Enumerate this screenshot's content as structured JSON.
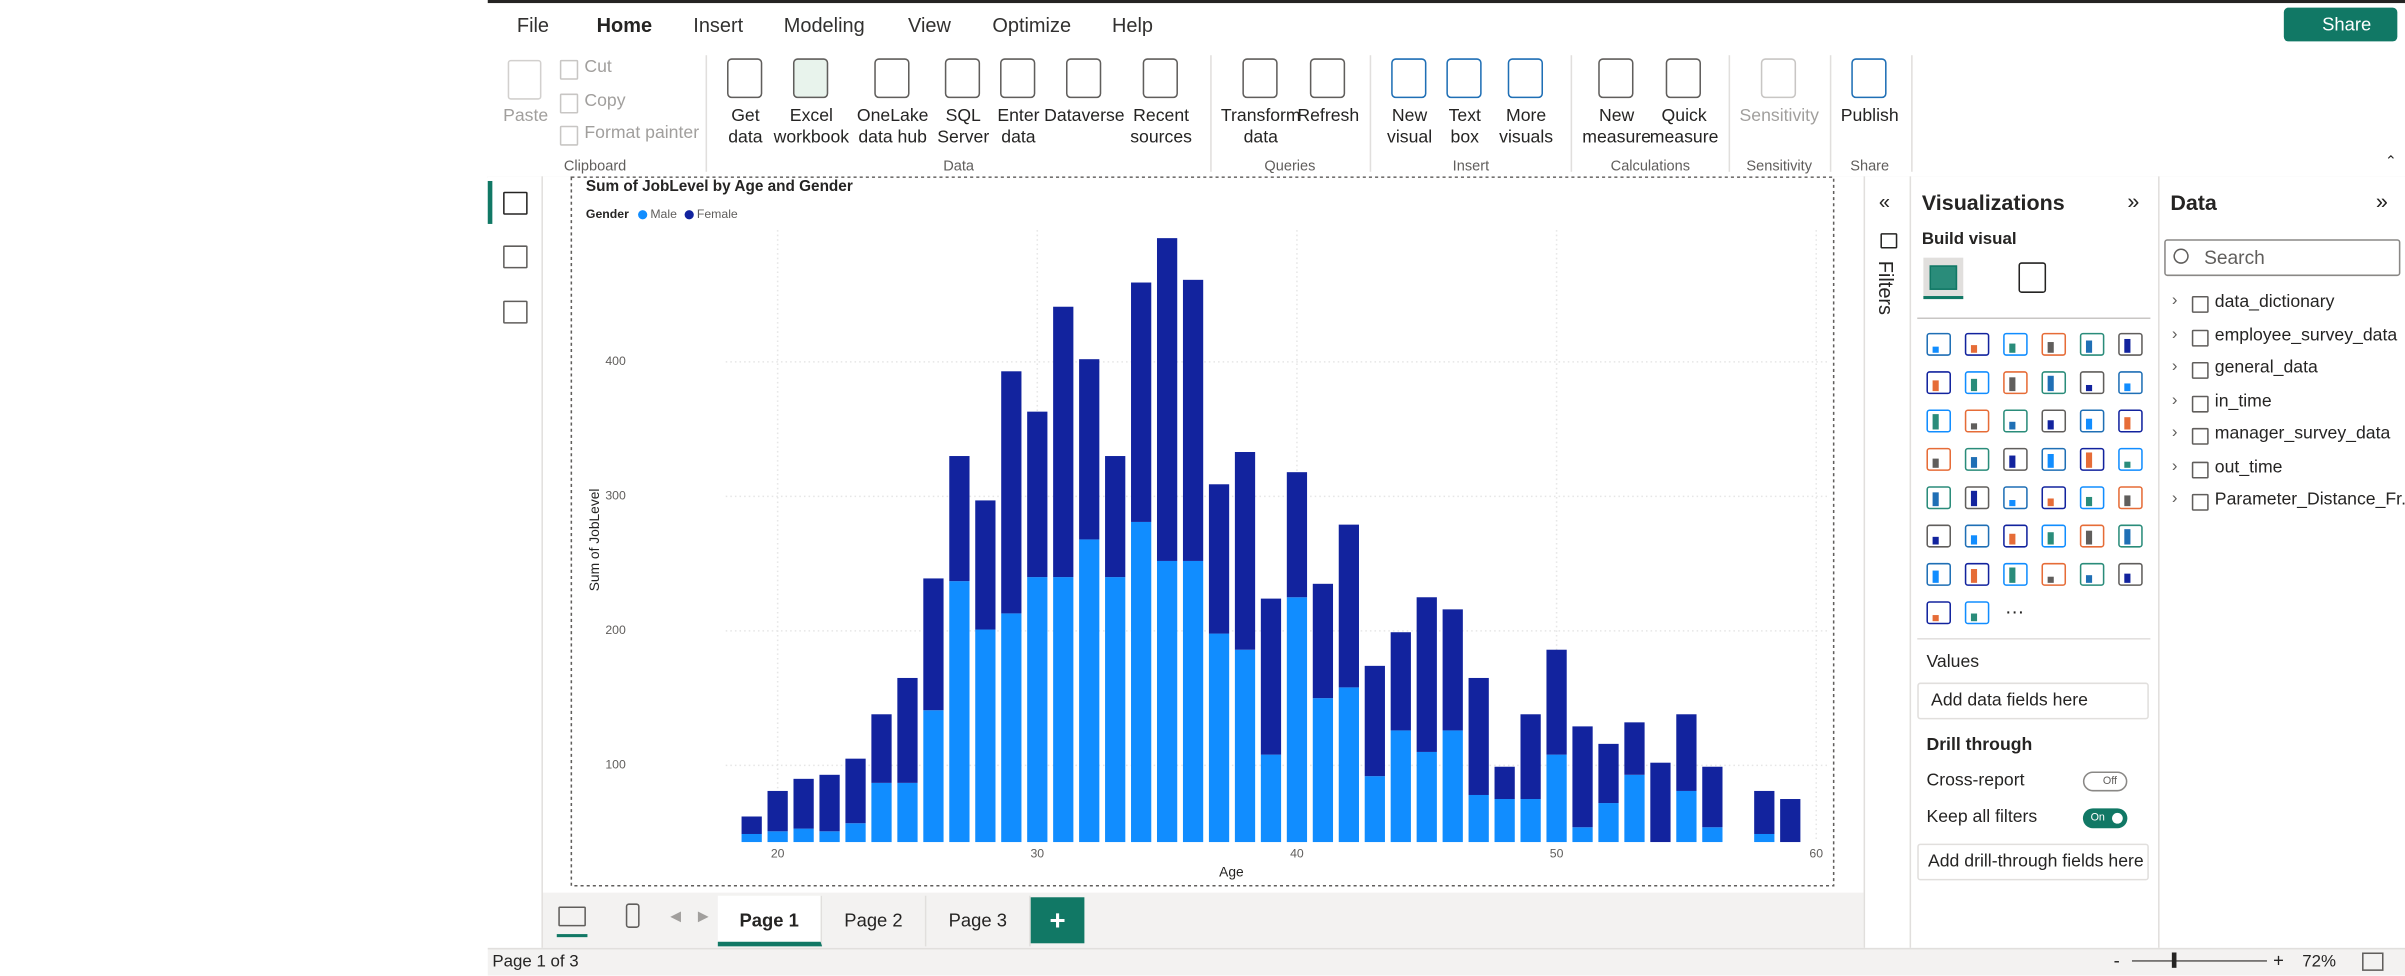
{
  "menu": {
    "items": [
      "File",
      "Home",
      "Insert",
      "Modeling",
      "View",
      "Optimize",
      "Help"
    ],
    "share": "Share"
  },
  "ribbon": {
    "groups": [
      {
        "label": "Clipboard",
        "items": [
          {
            "label": [
              "Paste"
            ]
          },
          {
            "label": [
              "Cut"
            ]
          },
          {
            "label": [
              "Copy"
            ]
          },
          {
            "label": [
              "Format painter"
            ]
          }
        ]
      },
      {
        "label": "Data",
        "items": [
          {
            "label": [
              "Get",
              "data"
            ]
          },
          {
            "label": [
              "Excel",
              "workbook"
            ]
          },
          {
            "label": [
              "OneLake",
              "data hub"
            ]
          },
          {
            "label": [
              "SQL",
              "Server"
            ]
          },
          {
            "label": [
              "Enter",
              "data"
            ]
          },
          {
            "label": [
              "Dataverse"
            ]
          },
          {
            "label": [
              "Recent",
              "sources"
            ]
          }
        ]
      },
      {
        "label": "Queries",
        "items": [
          {
            "label": [
              "Transform",
              "data"
            ]
          },
          {
            "label": [
              "Refresh"
            ]
          }
        ]
      },
      {
        "label": "Insert",
        "items": [
          {
            "label": [
              "New",
              "visual"
            ]
          },
          {
            "label": [
              "Text",
              "box"
            ]
          },
          {
            "label": [
              "More",
              "visuals"
            ]
          }
        ]
      },
      {
        "label": "Calculations",
        "items": [
          {
            "label": [
              "New",
              "measure"
            ]
          },
          {
            "label": [
              "Quick",
              "measure"
            ]
          }
        ]
      },
      {
        "label": "Sensitivity",
        "items": [
          {
            "label": [
              "Sensitivity"
            ]
          }
        ]
      },
      {
        "label": "Share",
        "items": [
          {
            "label": [
              "Publish"
            ]
          }
        ]
      }
    ]
  },
  "filters": {
    "title": "Filters"
  },
  "visualizations": {
    "title": "Visualizations",
    "build_visual": "Build visual",
    "values_label": "Values",
    "values_placeholder": "Add data fields here",
    "drill_through": "Drill through",
    "cross_report": "Cross-report",
    "cross_report_state": "Off",
    "keep_all_filters": "Keep all filters",
    "keep_all_filters_state": "On",
    "drill_placeholder": "Add drill-through fields here"
  },
  "data_pane": {
    "title": "Data",
    "search": "Search",
    "tables": [
      "data_dictionary",
      "employee_survey_data",
      "general_data",
      "in_time",
      "manager_survey_data",
      "out_time",
      "Parameter_Distance_Fr..."
    ]
  },
  "pages": {
    "tabs": [
      "Page 1",
      "Page 2",
      "Page 3"
    ],
    "status": "Page 1 of 3",
    "zoom": "72%"
  },
  "chart_data": {
    "type": "stacked_bar",
    "title": "Sum of JobLevel by Age and Gender",
    "legend_title": "Gender",
    "x_label": "Age",
    "y_label": "Sum of JobLevel",
    "x": [
      19,
      20,
      21,
      22,
      23,
      24,
      25,
      26,
      27,
      28,
      29,
      30,
      31,
      32,
      33,
      34,
      35,
      36,
      37,
      38,
      39,
      40,
      41,
      42,
      43,
      44,
      45,
      46,
      47,
      48,
      49,
      50,
      51,
      52,
      53,
      54,
      55,
      56,
      58,
      59
    ],
    "series": [
      {
        "name": "Male",
        "color": "#118dff",
        "values": [
          49,
          51,
          53,
          51,
          57,
          87,
          87,
          141,
          237,
          201,
          213,
          240,
          240,
          268,
          240,
          281,
          252,
          252,
          198,
          186,
          108,
          225,
          150,
          158,
          92,
          126,
          110,
          126,
          78,
          75,
          75,
          108,
          54,
          72,
          93,
          43,
          81,
          54,
          49,
          43
        ]
      },
      {
        "name": "Female",
        "color": "#12239e",
        "values": [
          13,
          30,
          37,
          42,
          48,
          51,
          78,
          98,
          93,
          96,
          180,
          123,
          201,
          134,
          90,
          178,
          240,
          209,
          111,
          147,
          116,
          93,
          85,
          121,
          82,
          73,
          115,
          90,
          87,
          24,
          63,
          78,
          75,
          44,
          39,
          59,
          57,
          45,
          32,
          32
        ]
      }
    ],
    "xlim": [
      18,
      60.5
    ],
    "ylim": [
      43,
      498
    ],
    "xticks": [
      20,
      30,
      40,
      50,
      60
    ],
    "yticks": [
      100,
      200,
      300,
      400
    ],
    "grid": true
  }
}
